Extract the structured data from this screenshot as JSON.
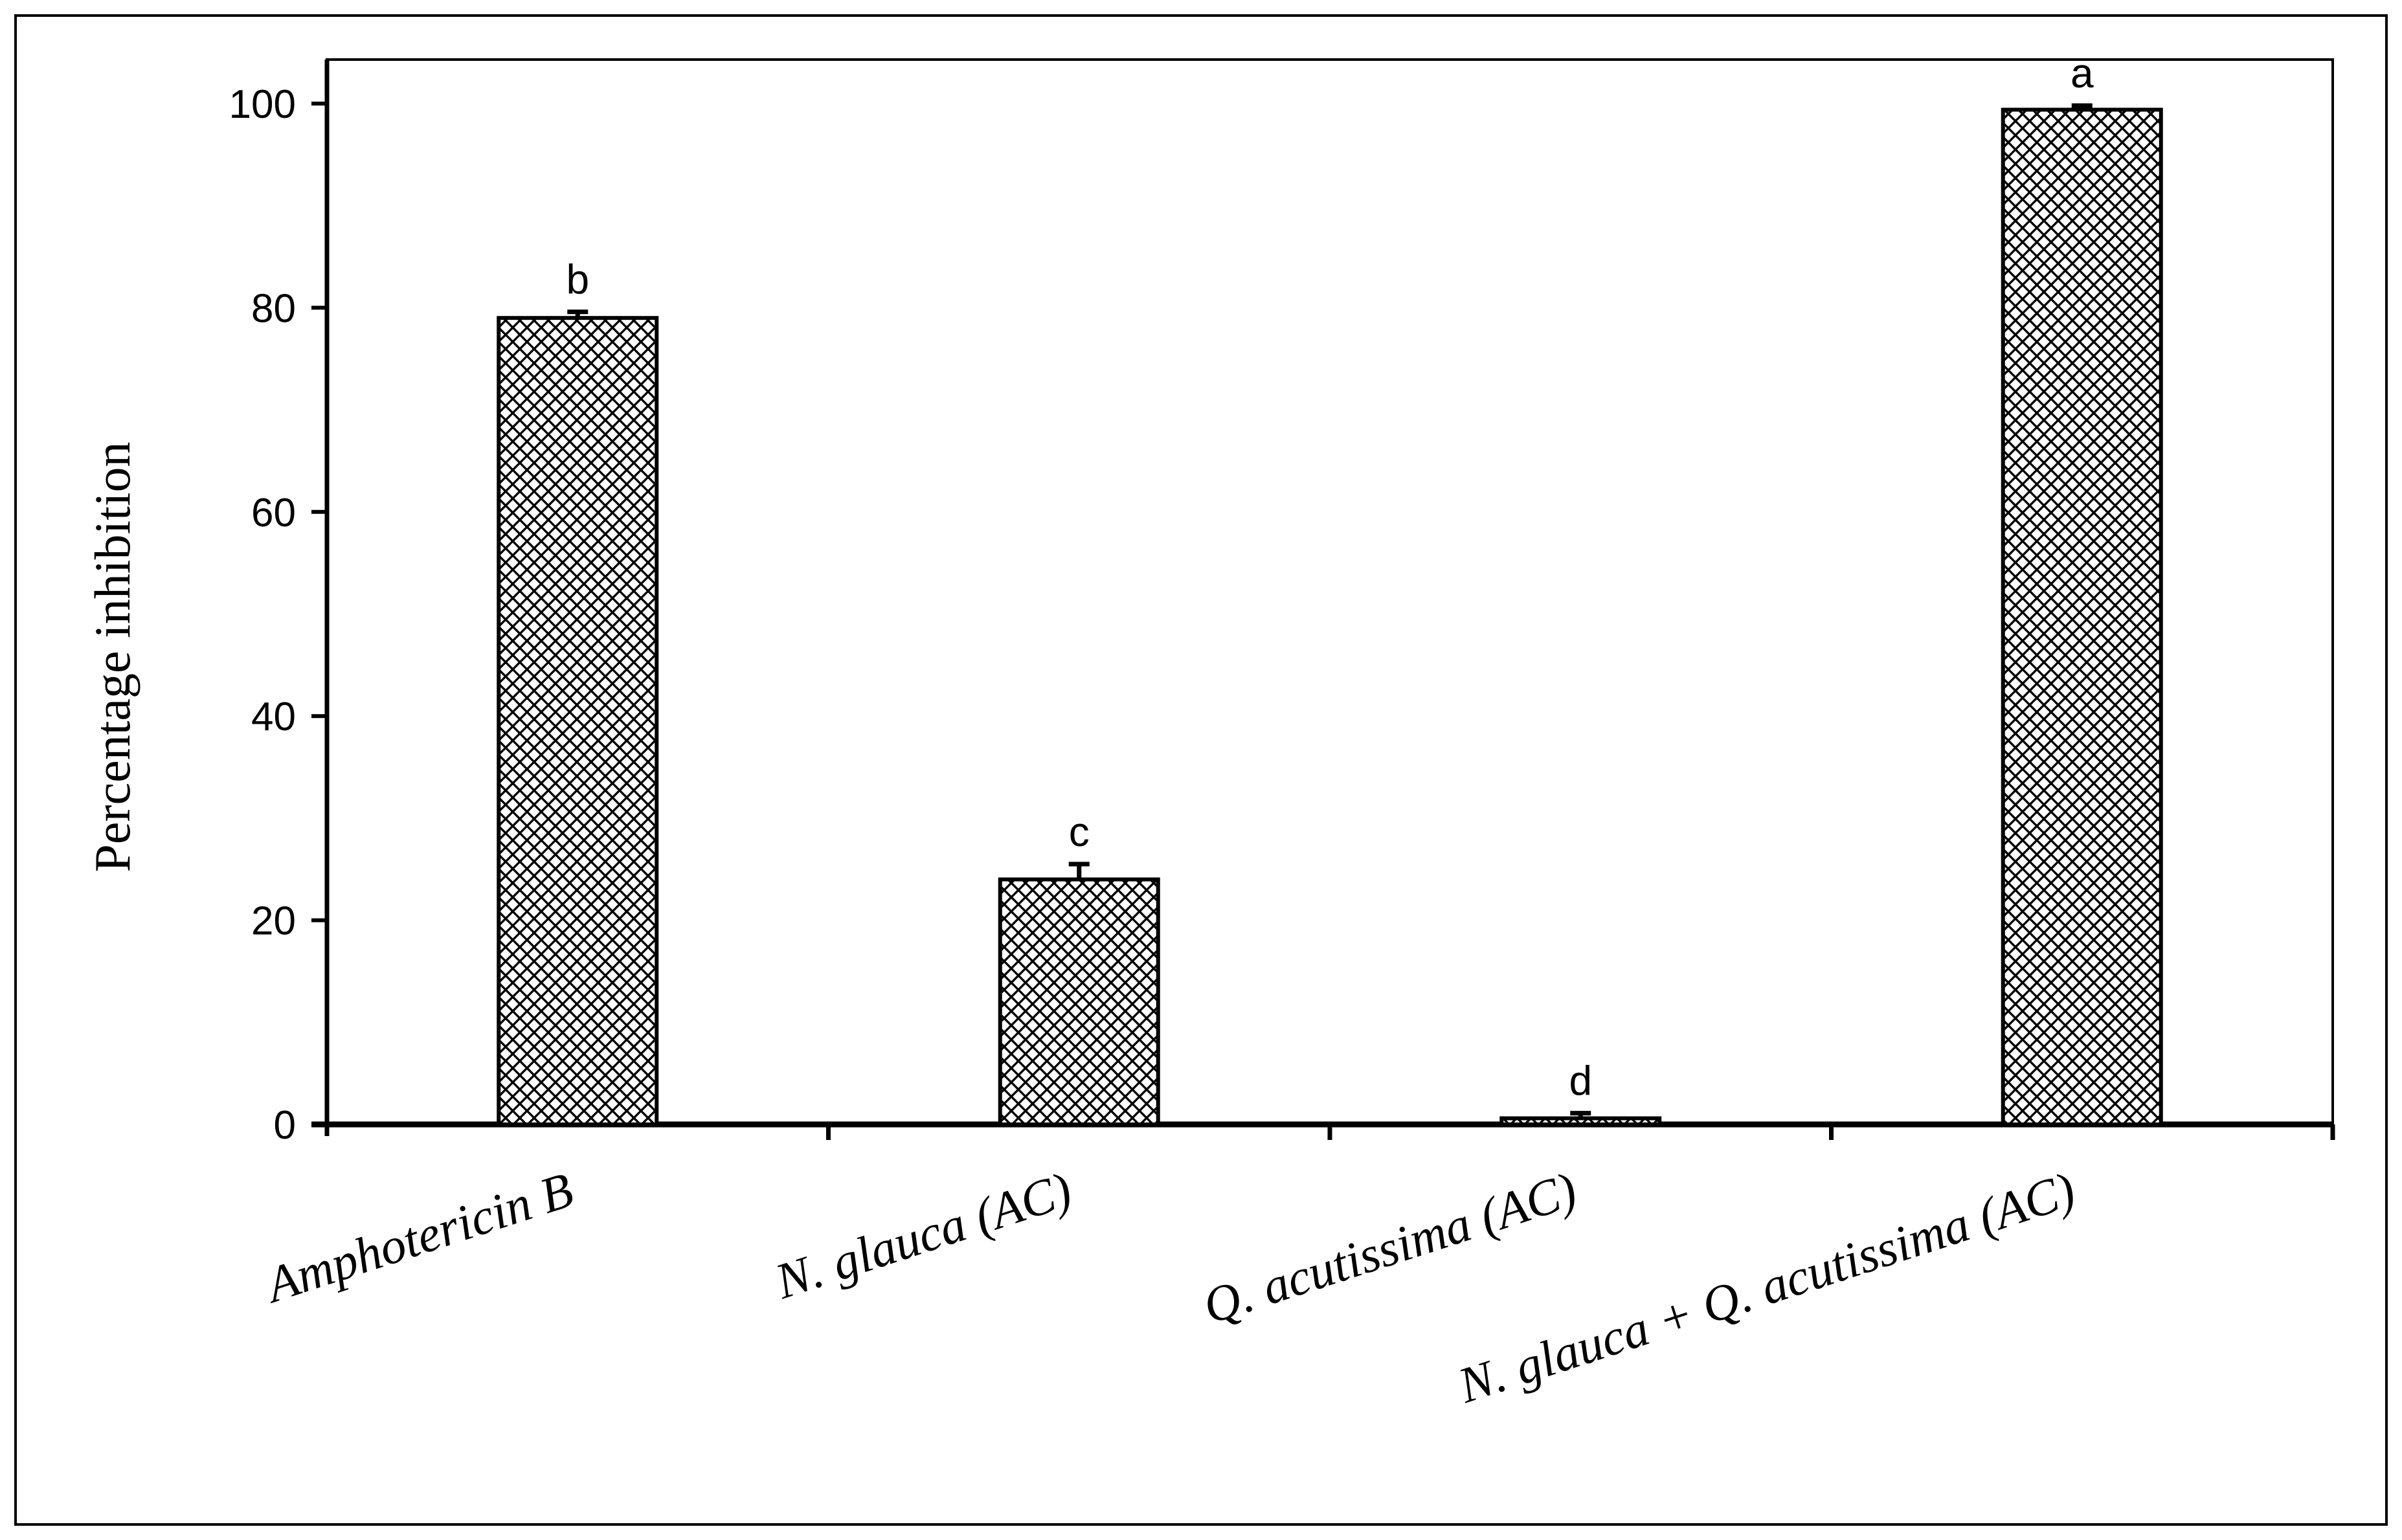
{
  "chart_data": {
    "type": "bar",
    "categories": [
      "Amphotericin B",
      "N. glauca (AC)",
      "Q. acutissima (AC)",
      "N. glauca + Q. acutissima (AC)"
    ],
    "values": [
      79,
      24,
      0.6,
      99.4
    ],
    "errors": [
      0.6,
      1.5,
      0.5,
      0.4
    ],
    "significance_letters": [
      "b",
      "c",
      "d",
      "a"
    ],
    "ylabel": "Percentage inhibition",
    "xlabel": "",
    "ylim": [
      0,
      100
    ],
    "yticks": [
      "0",
      "20",
      "40",
      "60",
      "80",
      "100"
    ],
    "grid": false,
    "legend": "none",
    "bar_fill": "crosshatch",
    "bar_color": "#000000"
  }
}
